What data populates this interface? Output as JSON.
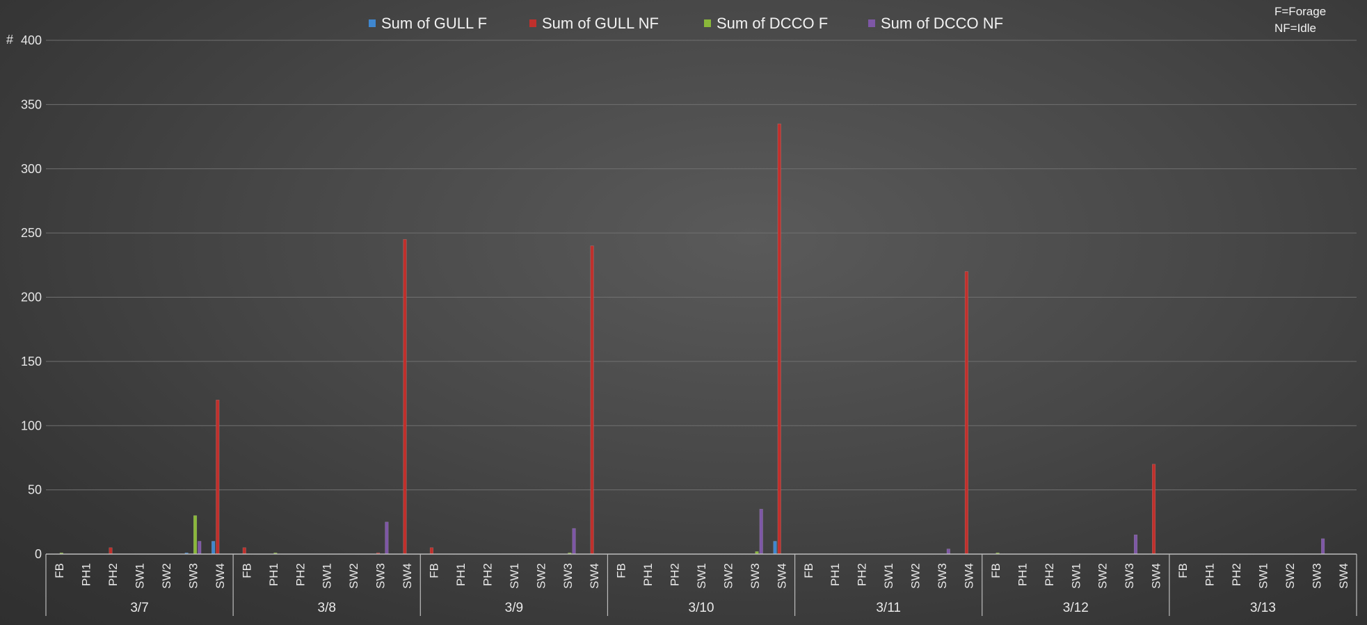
{
  "notes": [
    "F=Forage",
    "NF=Idle"
  ],
  "colors": {
    "gull_f": "#3f87cf",
    "gull_nf": "#c0302c",
    "dcco_f": "#8ab83a",
    "dcco_nf": "#7e57a6",
    "grid": "#707070",
    "axis": "#bdbdbd"
  },
  "chart_data": {
    "type": "bar",
    "title": "",
    "xlabel": "",
    "ylabel": "#",
    "ylim": [
      0,
      400
    ],
    "yticks": [
      0,
      50,
      100,
      150,
      200,
      250,
      300,
      350,
      400
    ],
    "grid": true,
    "legend_position": "top",
    "groups": [
      "3/7",
      "3/8",
      "3/9",
      "3/10",
      "3/11",
      "3/12",
      "3/13"
    ],
    "sites": [
      "FB",
      "PH1",
      "PH2",
      "SW1",
      "SW2",
      "SW3",
      "SW4"
    ],
    "series": [
      {
        "name": "Sum of GULL F",
        "color": "#3f87cf",
        "values": [
          [
            0,
            0,
            0,
            0,
            0,
            1,
            10
          ],
          [
            0,
            0,
            0,
            0,
            0,
            0,
            0
          ],
          [
            0,
            0,
            0,
            0,
            0,
            0,
            0
          ],
          [
            0,
            0,
            0,
            0,
            0,
            0,
            10
          ],
          [
            0,
            0,
            0,
            0,
            0,
            0,
            0
          ],
          [
            0,
            0,
            0,
            0,
            0,
            0,
            0
          ],
          [
            0,
            0,
            0,
            0,
            0,
            0,
            0
          ]
        ]
      },
      {
        "name": "Sum of GULL NF",
        "color": "#c0302c",
        "values": [
          [
            0,
            0,
            5,
            0,
            0,
            0,
            120
          ],
          [
            5,
            0,
            0,
            0,
            0,
            1,
            245
          ],
          [
            5,
            0,
            0,
            0,
            0,
            0,
            240
          ],
          [
            0,
            0,
            0,
            0,
            0,
            0,
            335
          ],
          [
            0,
            0,
            0,
            0,
            0,
            0,
            220
          ],
          [
            0,
            0,
            0,
            0,
            0,
            0,
            70
          ],
          [
            0,
            0,
            0,
            0,
            0,
            0,
            0
          ]
        ]
      },
      {
        "name": "Sum of DCCO F",
        "color": "#8ab83a",
        "values": [
          [
            1,
            0,
            0,
            0,
            0,
            30,
            0
          ],
          [
            0,
            1,
            0,
            0,
            0,
            0,
            0
          ],
          [
            0,
            0,
            0,
            0,
            0,
            1,
            0
          ],
          [
            0,
            0,
            0,
            0,
            0,
            2,
            0
          ],
          [
            0,
            0,
            0,
            0,
            0,
            0,
            0
          ],
          [
            1,
            0,
            0,
            0,
            0,
            0,
            0
          ],
          [
            0,
            0,
            0,
            0,
            0,
            0,
            0
          ]
        ]
      },
      {
        "name": "Sum of DCCO NF",
        "color": "#7e57a6",
        "values": [
          [
            0,
            0,
            0,
            0,
            0,
            10,
            0
          ],
          [
            0,
            0,
            0,
            0,
            0,
            25,
            0
          ],
          [
            0,
            0,
            0,
            0,
            0,
            20,
            0
          ],
          [
            0,
            0,
            0,
            0,
            0,
            35,
            0
          ],
          [
            0,
            0,
            0,
            0,
            0,
            4,
            0
          ],
          [
            0,
            0,
            0,
            0,
            0,
            15,
            0
          ],
          [
            0,
            0,
            0,
            0,
            0,
            12,
            0
          ]
        ]
      }
    ]
  }
}
